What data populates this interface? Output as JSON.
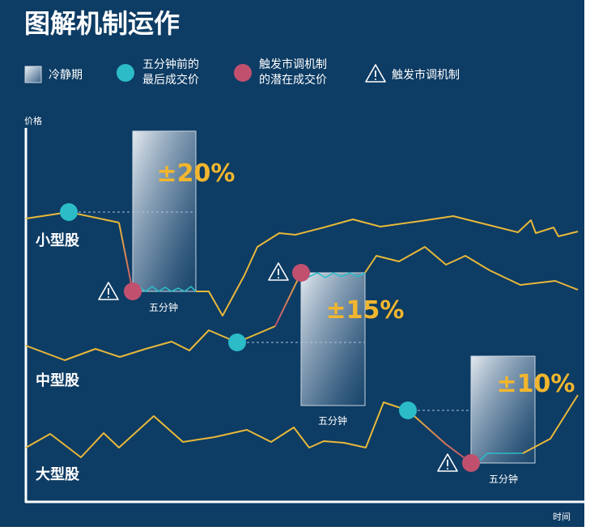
{
  "title": "图解机制运作",
  "legend": {
    "cooldown": "冷静期",
    "last_price_line1": "五分钟前的",
    "last_price_line2": "最后成交价",
    "trigger_price_line1": "触发市调机制",
    "trigger_price_line2": "的潜在成交价",
    "trigger": "触发市调机制"
  },
  "axis": {
    "y_label": "价格",
    "x_label": "时间"
  },
  "rows": [
    {
      "label": "小型股",
      "band": "±20%",
      "window": "五分钟"
    },
    {
      "label": "中型股",
      "band": "±15%",
      "window": "五分钟"
    },
    {
      "label": "大型股",
      "band": "±10%",
      "window": "五分钟"
    }
  ],
  "colors": {
    "background": "#0d3c64",
    "price_line": "#e8b83a",
    "last_price_dot": "#2bbcc8",
    "trigger_dot": "#c1506f",
    "band_text": "#f2b62e",
    "text": "#ffffff"
  },
  "icons": [
    "cooldown-box-icon",
    "warning-triangle-icon"
  ]
}
